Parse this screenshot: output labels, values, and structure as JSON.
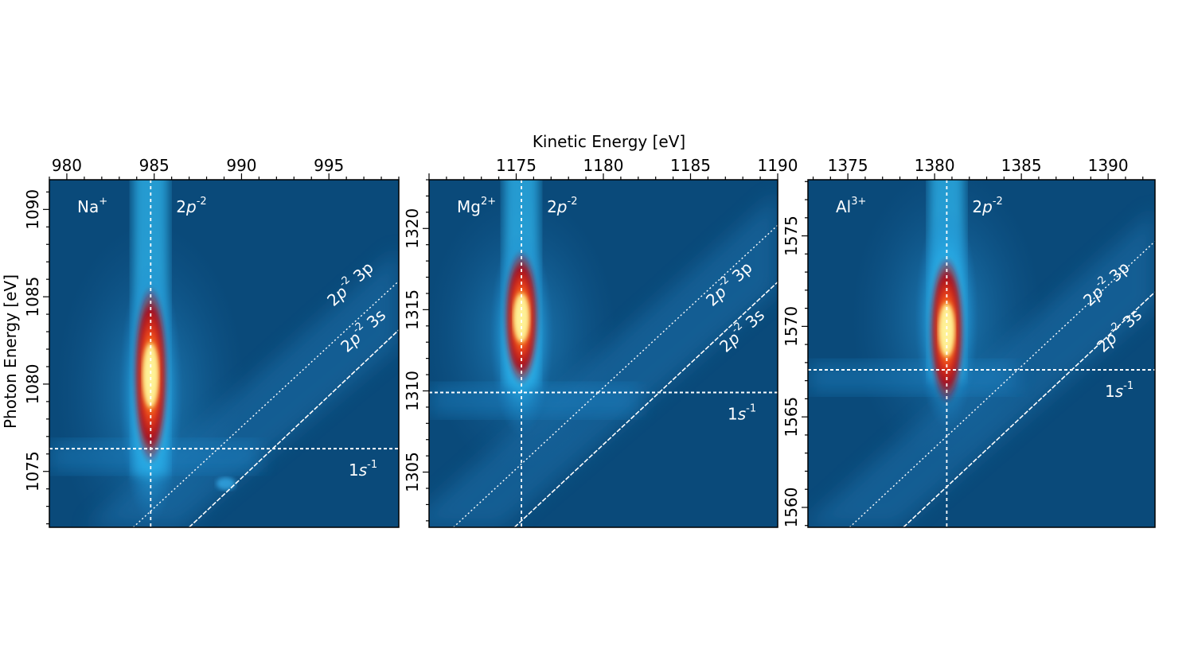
{
  "figure": {
    "top_axis_label": "Kinetic Energy [eV]",
    "left_axis_label": "Photon Energy [eV]"
  },
  "chart_data": [
    {
      "type": "heatmap",
      "panel": "Na",
      "ion_label": "Na",
      "ion_charge": "+",
      "peak_label_base": "2p",
      "peak_label_sup": "-2",
      "diag_labels": [
        {
          "base": "2p",
          "sup": "-2",
          "tail": "3p"
        },
        {
          "base": "2p",
          "sup": "-2",
          "tail": "3s"
        }
      ],
      "h_label_base": "1s",
      "h_label_sup": "-1",
      "x_ticks": [
        980,
        985,
        990,
        995
      ],
      "y_ticks": [
        1075,
        1080,
        1085,
        1090
      ],
      "xlim": [
        979,
        999
      ],
      "ylim": [
        1071.8,
        1091.7
      ],
      "vline_x": 984.8,
      "hline_y": 1076.3,
      "diag_3p": {
        "x0": 983.8,
        "y0": 1071.8,
        "x1": 999,
        "y1": 1085.9
      },
      "diag_3s": {
        "x0": 987.0,
        "y0": 1071.8,
        "x1": 999,
        "y1": 1083.1
      },
      "blob": {
        "x": 984.8,
        "y": 1079.5,
        "peak_y": 1080.5,
        "top": 1088,
        "bottom": 1074.8
      },
      "extra_spot": {
        "x": 989.1,
        "y": 1074.3
      }
    },
    {
      "type": "heatmap",
      "panel": "Mg",
      "ion_label": "Mg",
      "ion_charge": "2+",
      "peak_label_base": "2p",
      "peak_label_sup": "-2",
      "diag_labels": [
        {
          "base": "2p",
          "sup": "-2",
          "tail": "3p"
        },
        {
          "base": "2p",
          "sup": "-2",
          "tail": "3s"
        }
      ],
      "h_label_base": "1s",
      "h_label_sup": "-1",
      "x_ticks": [
        1175,
        1180,
        1185,
        1190
      ],
      "y_ticks": [
        1305,
        1310,
        1315,
        1320
      ],
      "xlim": [
        1170,
        1190
      ],
      "ylim": [
        1301.6,
        1323.0
      ],
      "vline_x": 1175.3,
      "hline_y": 1309.9,
      "diag_3p": {
        "x0": 1171.4,
        "y0": 1301.6,
        "x1": 1190,
        "y1": 1320.2
      },
      "diag_3s": {
        "x0": 1174.9,
        "y0": 1301.6,
        "x1": 1190,
        "y1": 1316.7
      },
      "blob": {
        "x": 1175.3,
        "y": 1313.5,
        "peak_y": 1314.5,
        "top": 1321,
        "bottom": 1310.3
      },
      "extra_spot": null
    },
    {
      "type": "heatmap",
      "panel": "Al",
      "ion_label": "Al",
      "ion_charge": "3+",
      "peak_label_base": "2p",
      "peak_label_sup": "-2",
      "diag_labels": [
        {
          "base": "2p",
          "sup": "-2",
          "tail": "3p"
        },
        {
          "base": "2p",
          "sup": "-2",
          "tail": "3s"
        }
      ],
      "h_label_base": "1s",
      "h_label_sup": "-1",
      "x_ticks": [
        1375,
        1380,
        1385,
        1390
      ],
      "y_ticks": [
        1560,
        1565,
        1570,
        1575
      ],
      "xlim": [
        1372.7,
        1392.7
      ],
      "ylim": [
        1558.9,
        1578.1
      ],
      "vline_x": 1380.7,
      "hline_y": 1567.6,
      "diag_3p": {
        "x0": 1375.1,
        "y0": 1558.9,
        "x1": 1392.7,
        "y1": 1574.7
      },
      "diag_3s": {
        "x0": 1378.2,
        "y0": 1558.9,
        "x1": 1392.7,
        "y1": 1571.9
      },
      "blob": {
        "x": 1380.7,
        "y": 1570.5,
        "peak_y": 1569.8,
        "top": 1577.5,
        "bottom": 1567.0
      },
      "extra_spot": null
    }
  ]
}
